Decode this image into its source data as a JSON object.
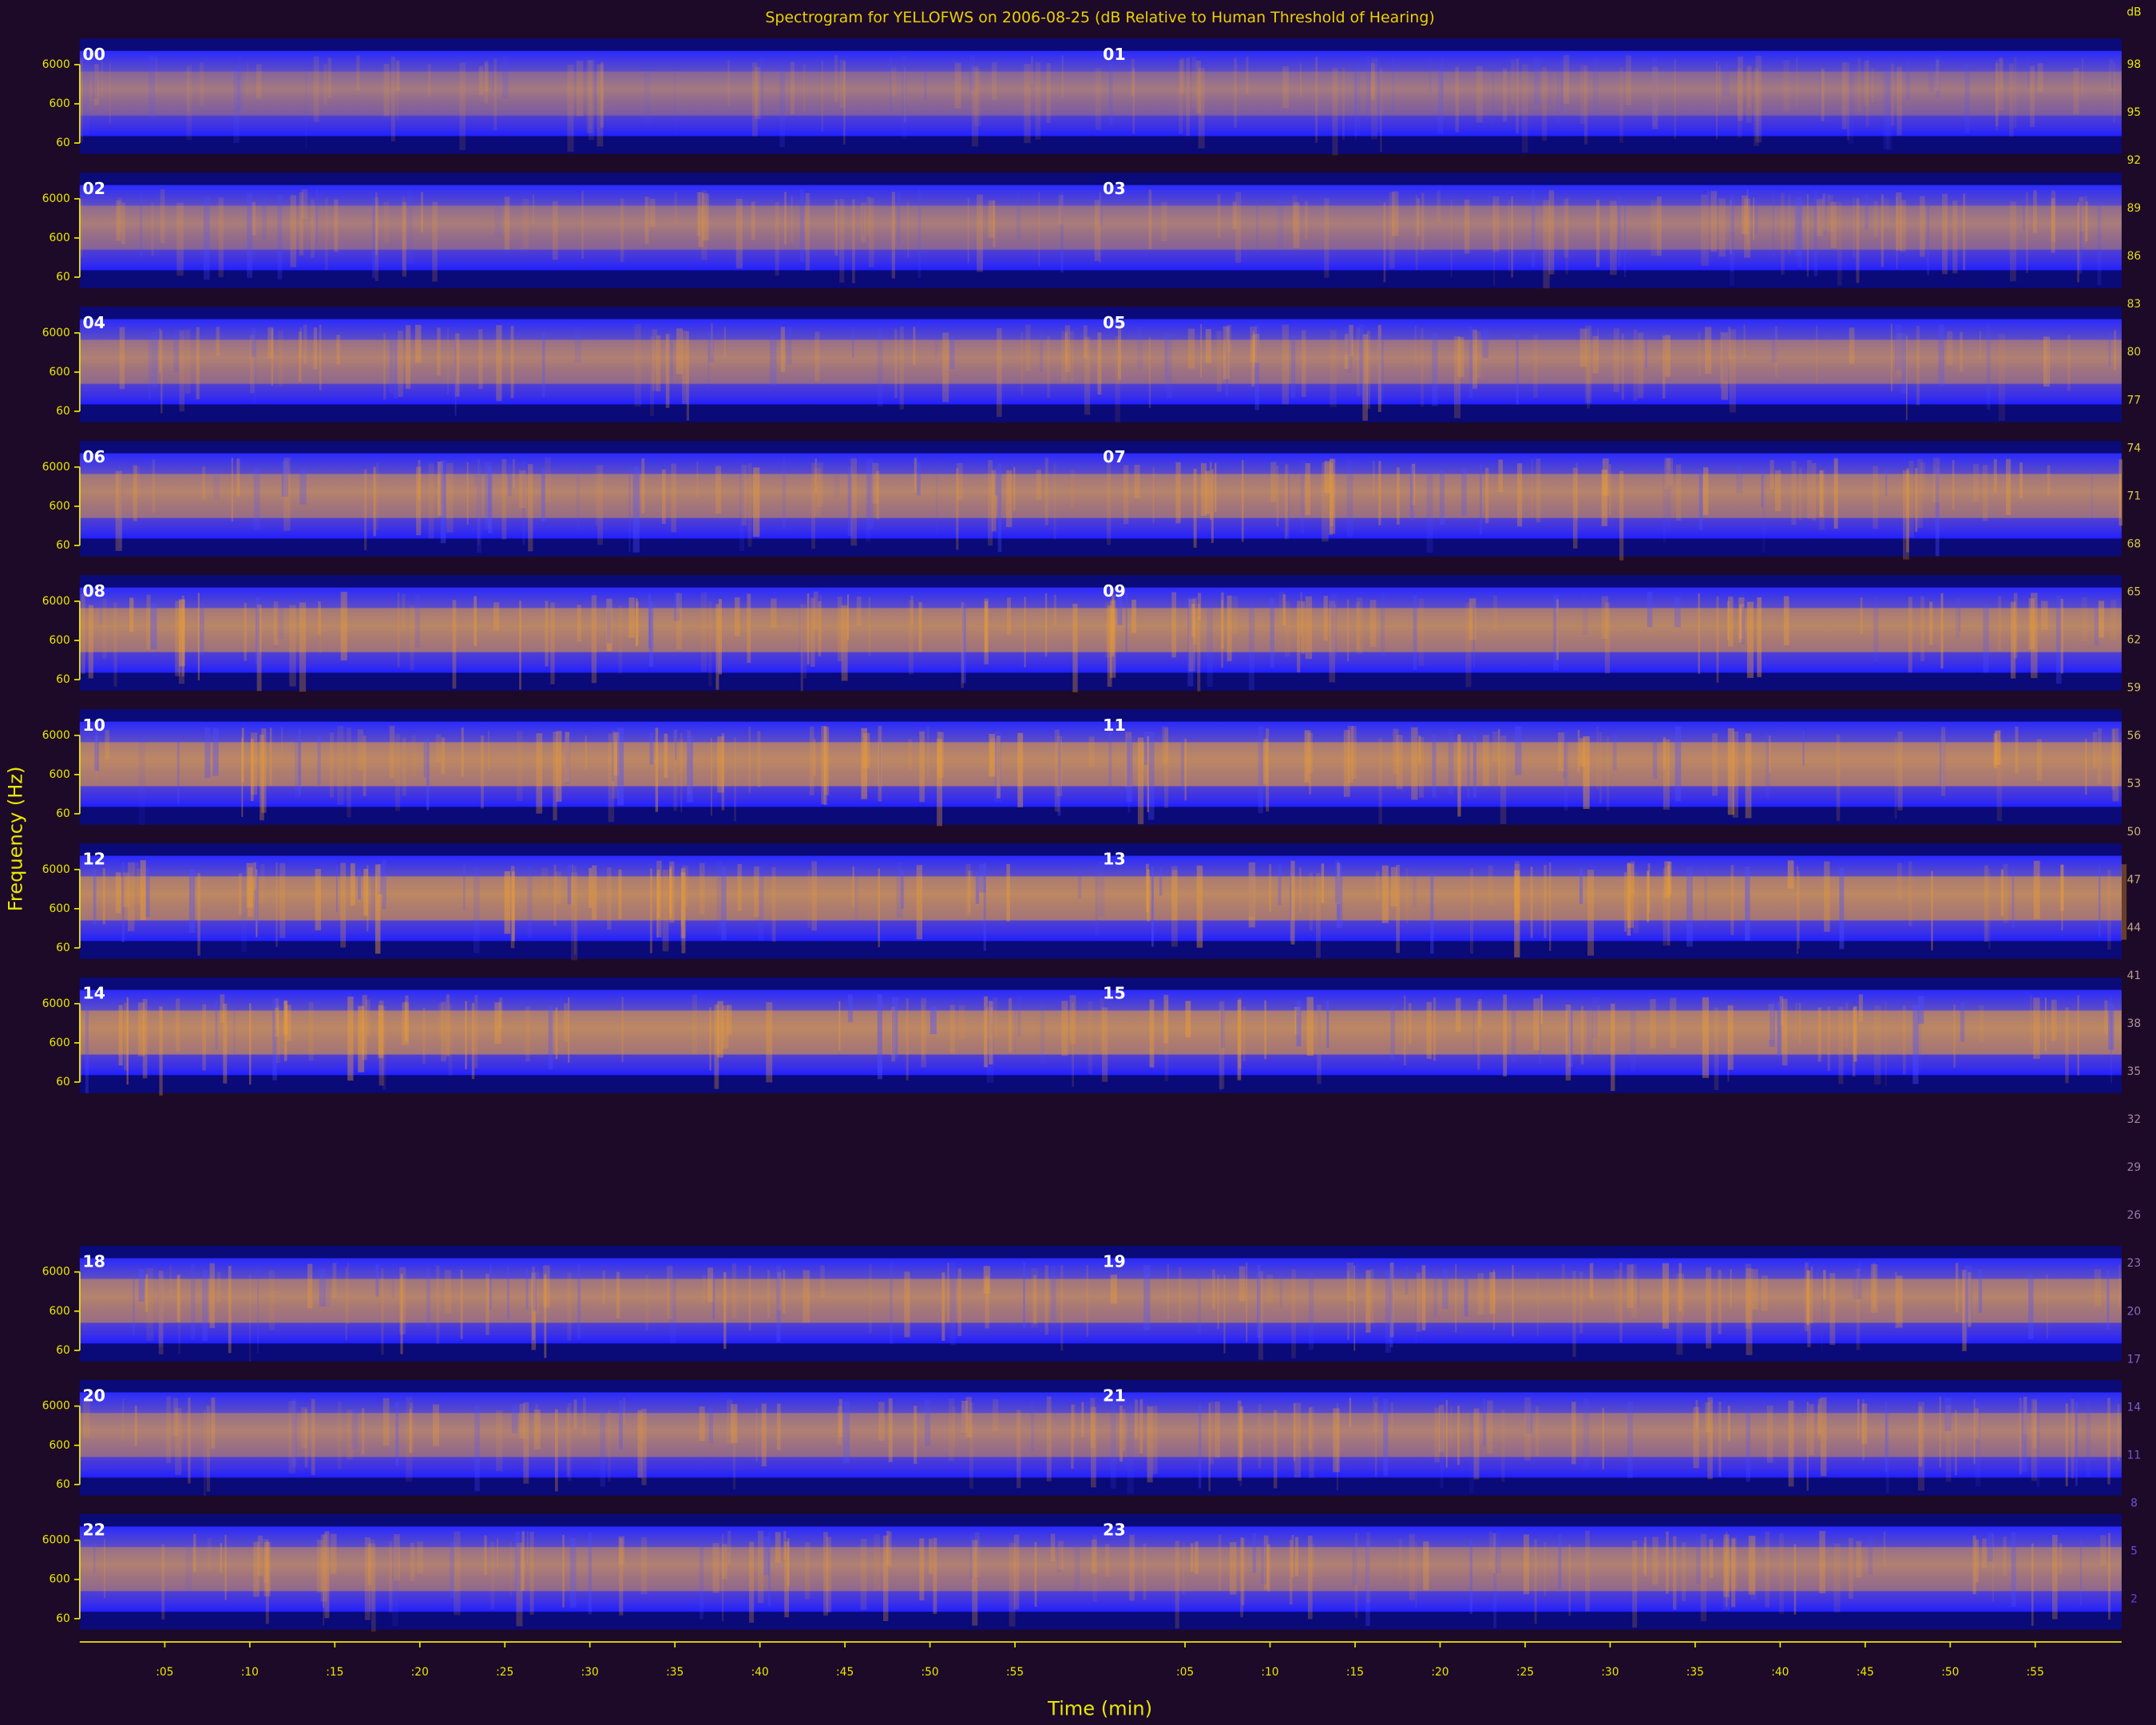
{
  "chart_data": {
    "type": "spectrogram",
    "title": "Spectrogram for YELLOFWS on 2006-08-25 (dB Relative to Human Threshold of Hearing)",
    "xlabel": "Time (min)",
    "ylabel": "Frequency (Hz)",
    "rows": [
      [
        "00",
        "01"
      ],
      [
        "02",
        "03"
      ],
      [
        "04",
        "05"
      ],
      [
        "06",
        "07"
      ],
      [
        "08",
        "09"
      ],
      [
        "10",
        "11"
      ],
      [
        "12",
        "13"
      ],
      [
        "14",
        "15"
      ],
      [
        null,
        null
      ],
      [
        "18",
        "19"
      ],
      [
        "20",
        "21"
      ],
      [
        "22",
        "23"
      ]
    ],
    "xlim": [
      0,
      60
    ],
    "xticks": [
      {
        "value": 5,
        "label": ":05"
      },
      {
        "value": 10,
        "label": ":10"
      },
      {
        "value": 15,
        "label": ":15"
      },
      {
        "value": 20,
        "label": ":20"
      },
      {
        "value": 25,
        "label": ":25"
      },
      {
        "value": 30,
        "label": ":30"
      },
      {
        "value": 35,
        "label": ":35"
      },
      {
        "value": 40,
        "label": ":40"
      },
      {
        "value": 45,
        "label": ":45"
      },
      {
        "value": 50,
        "label": ":50"
      },
      {
        "value": 55,
        "label": ":55"
      }
    ],
    "yscale": "log",
    "yticks": [
      6000,
      600,
      60
    ],
    "colorbar": {
      "label": "dB",
      "ticks": [
        98,
        95,
        92,
        89,
        86,
        83,
        80,
        77,
        74,
        71,
        68,
        65,
        62,
        59,
        56,
        53,
        50,
        47,
        44,
        41,
        38,
        35,
        32,
        29,
        26,
        23,
        20,
        17,
        14,
        11,
        8,
        5,
        2
      ]
    }
  }
}
